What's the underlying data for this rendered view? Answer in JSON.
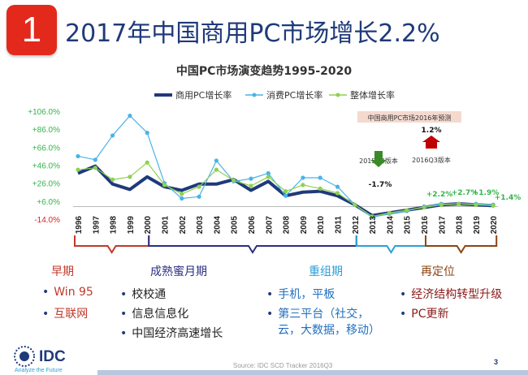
{
  "slide": {
    "number": "1",
    "title": "2017年中国商用PC市场增长2.2%",
    "page_number": "3",
    "source": "Source: IDC SCD Tracker 2016Q3",
    "logo_text": "IDC",
    "logo_tagline": "Analyze the Future"
  },
  "chart_data": {
    "type": "line",
    "title": "中国PC市场演变趋势1995-2020",
    "categories": [
      "1996",
      "1997",
      "1998",
      "1999",
      "2000",
      "2001",
      "2002",
      "2003",
      "2004",
      "2005",
      "2006",
      "2007",
      "2008",
      "2009",
      "2010",
      "2011",
      "2012",
      "2013",
      "2014",
      "2015",
      "2016",
      "2017",
      "2018",
      "2019",
      "2020"
    ],
    "y_ticks": [
      "+106.0%",
      "+86.0%",
      "+66.0%",
      "+46.0%",
      "+26.0%",
      "+6.0%",
      "-14.0%"
    ],
    "ylim": [
      -14,
      106
    ],
    "grid": false,
    "legend_position": "top",
    "series": [
      {
        "name": "商用PC增长率",
        "color": "#1f3a7a",
        "values": [
          37,
          45,
          25,
          19,
          33,
          22,
          18,
          25,
          25,
          30,
          18,
          28,
          12,
          16,
          17,
          12,
          2,
          -10,
          -7,
          -4,
          -1,
          2,
          3,
          2,
          1
        ]
      },
      {
        "name": "消费PC增长率",
        "color": "#4ab3e8",
        "values": [
          56,
          52,
          79,
          101,
          82,
          26,
          9,
          11,
          51,
          28,
          31,
          37,
          12,
          32,
          32,
          22,
          2,
          -12,
          -8,
          -5,
          0,
          3,
          3,
          3,
          2
        ]
      },
      {
        "name": "整体增长率",
        "color": "#8fd14f",
        "values": [
          41,
          43,
          30,
          33,
          49,
          24,
          14,
          22,
          41,
          29,
          23,
          33,
          17,
          24,
          20,
          15,
          2,
          -11,
          -7,
          -4,
          -1,
          2,
          3,
          2,
          1
        ]
      }
    ],
    "annotations": {
      "forecast_box": "中国商用PC市场2016年预测",
      "value_q3": "1.2%",
      "label_q3": "2016Q3版本",
      "value_2015": "-1.7%",
      "label_2015": "2015Q4版本",
      "growth_labels": [
        "+2.2%",
        "+2.7%",
        "+1.9%",
        "+1.4%"
      ]
    }
  },
  "phases": [
    {
      "name": "早期",
      "color": "#c0392b",
      "bullets": [
        "Win 95",
        "互联网"
      ]
    },
    {
      "name": "成熟蜜月期",
      "color": "#2c2f82",
      "bullets": [
        "校校通",
        "信息信息化",
        "中国经济高速增长"
      ]
    },
    {
      "name": "重组期",
      "color": "#2a9fd8",
      "bullets": [
        "手机，平板",
        "第三平台（社交，",
        "云，大数据，移动）"
      ]
    },
    {
      "name": "再定位",
      "color": "#8b4513",
      "bullets": [
        "经济结构转型升级",
        "PC更新"
      ]
    }
  ]
}
